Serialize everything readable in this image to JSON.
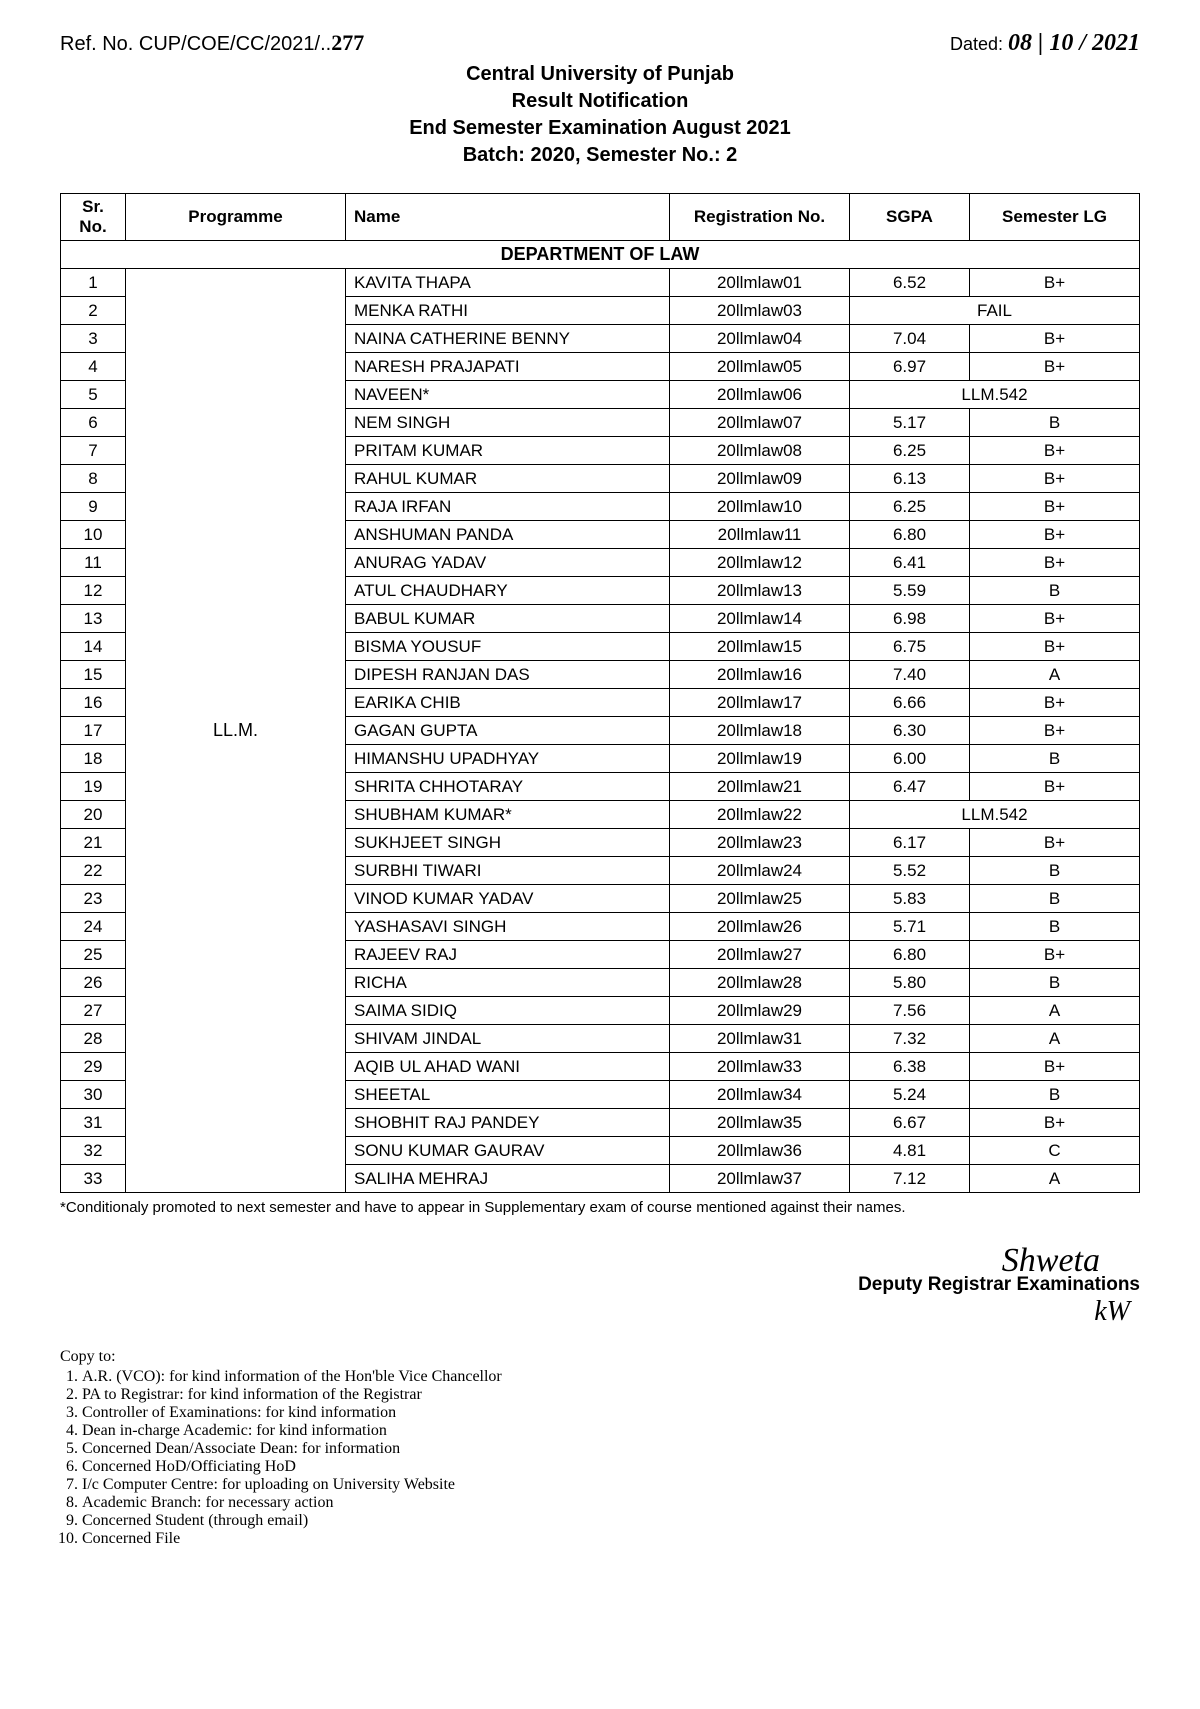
{
  "header": {
    "ref_prefix": "Ref. No. CUP/COE/CC/2021/..",
    "ref_handwritten": "277",
    "dated_label": "Dated:",
    "dated_hand": "08 | 10 / 2021",
    "line1": "Central University of Punjab",
    "line2": "Result Notification",
    "line3": "End Semester Examination August 2021",
    "line4": "Batch: 2020, Semester No.: 2"
  },
  "table": {
    "columns": {
      "srno": "Sr. No.",
      "programme": "Programme",
      "name": "Name",
      "regno": "Registration No.",
      "sgpa": "SGPA",
      "semlg": "Semester LG"
    },
    "department": "DEPARTMENT OF LAW",
    "programme_value": "LL.M.",
    "rows": [
      {
        "sr": "1",
        "name": "KAVITA THAPA",
        "reg": "20llmlaw01",
        "sgpa": "6.52",
        "lg": "B+"
      },
      {
        "sr": "2",
        "name": "MENKA RATHI",
        "reg": "20llmlaw03",
        "span": "FAIL"
      },
      {
        "sr": "3",
        "name": "NAINA CATHERINE BENNY",
        "reg": "20llmlaw04",
        "sgpa": "7.04",
        "lg": "B+"
      },
      {
        "sr": "4",
        "name": "NARESH PRAJAPATI",
        "reg": "20llmlaw05",
        "sgpa": "6.97",
        "lg": "B+"
      },
      {
        "sr": "5",
        "name": "NAVEEN*",
        "reg": "20llmlaw06",
        "span": "LLM.542"
      },
      {
        "sr": "6",
        "name": "NEM SINGH",
        "reg": "20llmlaw07",
        "sgpa": "5.17",
        "lg": "B"
      },
      {
        "sr": "7",
        "name": "PRITAM KUMAR",
        "reg": "20llmlaw08",
        "sgpa": "6.25",
        "lg": "B+"
      },
      {
        "sr": "8",
        "name": "RAHUL KUMAR",
        "reg": "20llmlaw09",
        "sgpa": "6.13",
        "lg": "B+"
      },
      {
        "sr": "9",
        "name": "RAJA IRFAN",
        "reg": "20llmlaw10",
        "sgpa": "6.25",
        "lg": "B+"
      },
      {
        "sr": "10",
        "name": "ANSHUMAN PANDA",
        "reg": "20llmlaw11",
        "sgpa": "6.80",
        "lg": "B+"
      },
      {
        "sr": "11",
        "name": "ANURAG YADAV",
        "reg": "20llmlaw12",
        "sgpa": "6.41",
        "lg": "B+"
      },
      {
        "sr": "12",
        "name": "ATUL CHAUDHARY",
        "reg": "20llmlaw13",
        "sgpa": "5.59",
        "lg": "B"
      },
      {
        "sr": "13",
        "name": "BABUL KUMAR",
        "reg": "20llmlaw14",
        "sgpa": "6.98",
        "lg": "B+"
      },
      {
        "sr": "14",
        "name": "BISMA YOUSUF",
        "reg": "20llmlaw15",
        "sgpa": "6.75",
        "lg": "B+"
      },
      {
        "sr": "15",
        "name": "DIPESH RANJAN DAS",
        "reg": "20llmlaw16",
        "sgpa": "7.40",
        "lg": "A"
      },
      {
        "sr": "16",
        "name": "EARIKA CHIB",
        "reg": "20llmlaw17",
        "sgpa": "6.66",
        "lg": "B+"
      },
      {
        "sr": "17",
        "name": "GAGAN GUPTA",
        "reg": "20llmlaw18",
        "sgpa": "6.30",
        "lg": "B+"
      },
      {
        "sr": "18",
        "name": "HIMANSHU UPADHYAY",
        "reg": "20llmlaw19",
        "sgpa": "6.00",
        "lg": "B"
      },
      {
        "sr": "19",
        "name": "SHRITA CHHOTARAY",
        "reg": "20llmlaw21",
        "sgpa": "6.47",
        "lg": "B+"
      },
      {
        "sr": "20",
        "name": "SHUBHAM KUMAR*",
        "reg": "20llmlaw22",
        "span": "LLM.542"
      },
      {
        "sr": "21",
        "name": "SUKHJEET SINGH",
        "reg": "20llmlaw23",
        "sgpa": "6.17",
        "lg": "B+"
      },
      {
        "sr": "22",
        "name": "SURBHI TIWARI",
        "reg": "20llmlaw24",
        "sgpa": "5.52",
        "lg": "B"
      },
      {
        "sr": "23",
        "name": "VINOD KUMAR YADAV",
        "reg": "20llmlaw25",
        "sgpa": "5.83",
        "lg": "B"
      },
      {
        "sr": "24",
        "name": "YASHASAVI SINGH",
        "reg": "20llmlaw26",
        "sgpa": "5.71",
        "lg": "B"
      },
      {
        "sr": "25",
        "name": "RAJEEV RAJ",
        "reg": "20llmlaw27",
        "sgpa": "6.80",
        "lg": "B+"
      },
      {
        "sr": "26",
        "name": "RICHA",
        "reg": "20llmlaw28",
        "sgpa": "5.80",
        "lg": "B"
      },
      {
        "sr": "27",
        "name": "SAIMA SIDIQ",
        "reg": "20llmlaw29",
        "sgpa": "7.56",
        "lg": "A"
      },
      {
        "sr": "28",
        "name": "SHIVAM JINDAL",
        "reg": "20llmlaw31",
        "sgpa": "7.32",
        "lg": "A"
      },
      {
        "sr": "29",
        "name": "AQIB UL AHAD WANI",
        "reg": "20llmlaw33",
        "sgpa": "6.38",
        "lg": "B+"
      },
      {
        "sr": "30",
        "name": "SHEETAL",
        "reg": "20llmlaw34",
        "sgpa": "5.24",
        "lg": "B"
      },
      {
        "sr": "31",
        "name": "SHOBHIT RAJ PANDEY",
        "reg": "20llmlaw35",
        "sgpa": "6.67",
        "lg": "B+"
      },
      {
        "sr": "32",
        "name": "SONU KUMAR GAURAV",
        "reg": "20llmlaw36",
        "sgpa": "4.81",
        "lg": "C"
      },
      {
        "sr": "33",
        "name": "SALIHA MEHRAJ",
        "reg": "20llmlaw37",
        "sgpa": "7.12",
        "lg": "A"
      }
    ]
  },
  "footnote": "*Conditionaly promoted to next semester and have to appear in Supplementary exam of course mentioned  against their names.",
  "signature": {
    "hand1": "Shweta",
    "title": "Deputy Registrar Examinations",
    "hand2": "kW"
  },
  "copyto": {
    "heading": "Copy to:",
    "items": [
      "A.R. (VCO): for kind information of the Hon'ble Vice Chancellor",
      "PA to Registrar: for kind information of the Registrar",
      "Controller of Examinations: for kind information",
      "Dean in-charge Academic: for kind information",
      "Concerned Dean/Associate Dean: for information",
      "Concerned HoD/Officiating HoD",
      "I/c Computer Centre: for uploading on University Website",
      "Academic Branch: for necessary action",
      "Concerned Student (through email)",
      "Concerned File"
    ]
  }
}
